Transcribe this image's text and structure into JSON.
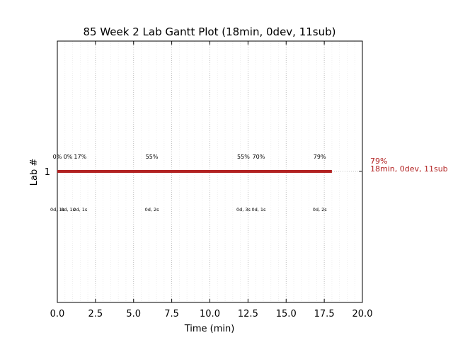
{
  "chart_data": {
    "type": "gantt",
    "title": "85 Week 2 Lab Gantt Plot (18min, 0dev, 11sub)",
    "xlabel": "Time (min)",
    "ylabel": "Lab #",
    "xlim": [
      0,
      20
    ],
    "x_ticks": [
      0,
      2.5,
      5,
      7.5,
      10,
      12.5,
      15,
      17.5,
      20
    ],
    "x_tick_labels": [
      "0.0",
      "2.5",
      "5.0",
      "7.5",
      "10.0",
      "12.5",
      "15.0",
      "17.5",
      "20.0"
    ],
    "grid": true,
    "color": "#b22222",
    "rows": [
      {
        "label": "1",
        "start": 0,
        "end": 18,
        "end_label": "79%",
        "end_summary": "18min, 0dev, 11sub",
        "submissions": [
          {
            "t": 0.0,
            "score": "0%",
            "detail": "0d, 1s"
          },
          {
            "t": 0.7,
            "score": "0%",
            "detail": "0d, 1s"
          },
          {
            "t": 1.5,
            "score": "17%",
            "detail": "0d, 1s"
          },
          {
            "t": 6.2,
            "score": "55%",
            "detail": "0d, 2s"
          },
          {
            "t": 12.2,
            "score": "55%",
            "detail": "0d, 3s"
          },
          {
            "t": 13.2,
            "score": "70%",
            "detail": "0d, 1s"
          },
          {
            "t": 17.2,
            "score": "79%",
            "detail": "0d, 2s"
          }
        ]
      }
    ]
  }
}
